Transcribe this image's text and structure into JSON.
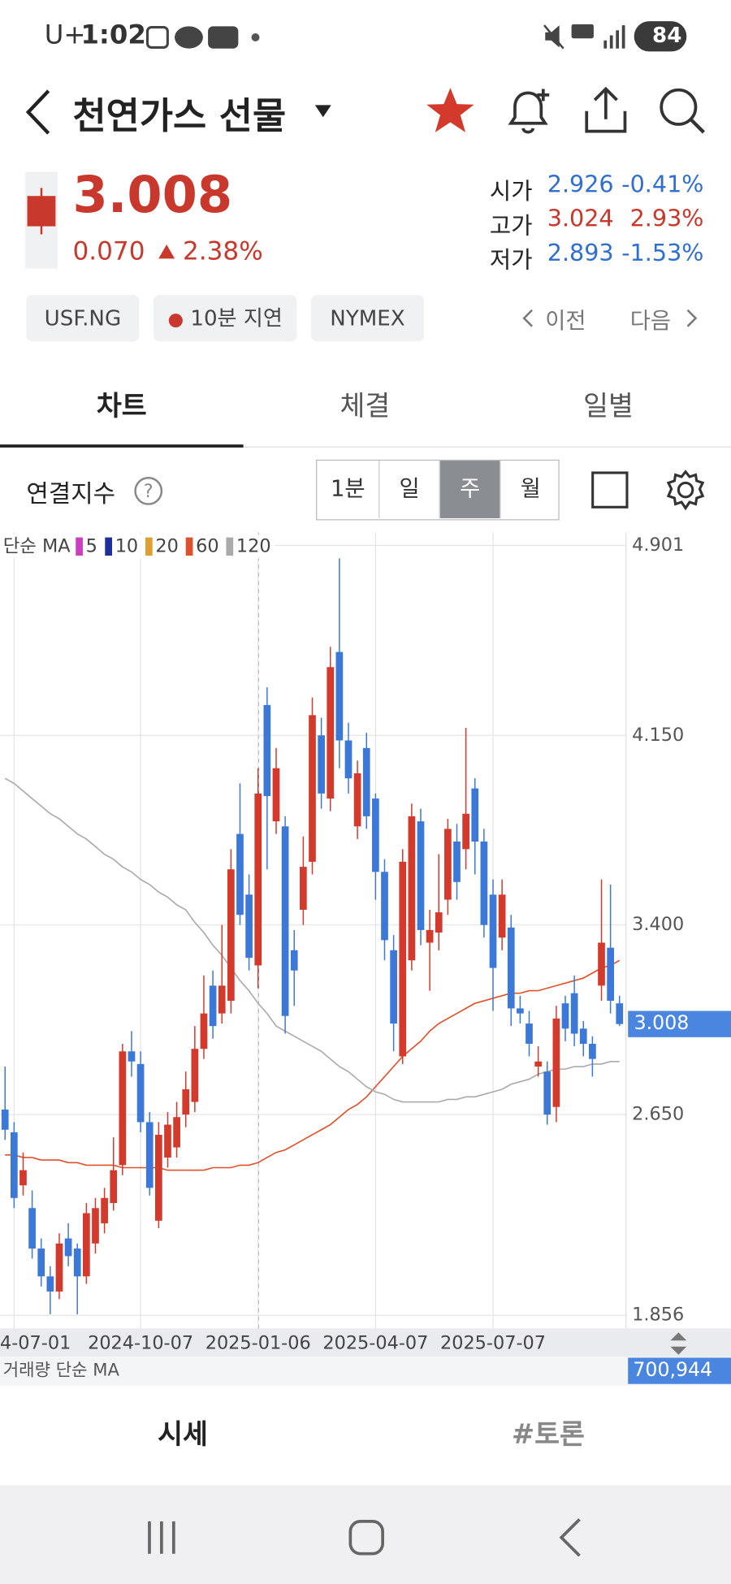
{
  "status_bar": {
    "carrier": "U+",
    "time": "1:02",
    "battery": "84"
  },
  "header": {
    "title": "천연가스 선물"
  },
  "quote": {
    "price": "3.008",
    "change": "0.070",
    "change_pct": "2.38%",
    "stats": [
      {
        "label": "시가",
        "value": "2.926",
        "pct": "-0.41%",
        "color": "#2f6fce"
      },
      {
        "label": "고가",
        "value": "3.024",
        "pct": "2.93%",
        "color": "#c9382c"
      },
      {
        "label": "저가",
        "value": "2.893",
        "pct": "-1.53%",
        "color": "#2f6fce"
      }
    ]
  },
  "chips": [
    "USF.NG",
    "10분 지연",
    "NYMEX"
  ],
  "pager": {
    "prev": "이전",
    "next": "다음"
  },
  "tabs": {
    "items": [
      "차트",
      "체결",
      "일별"
    ],
    "selected": 0
  },
  "controls": {
    "label": "연결지수",
    "periods": [
      "1분",
      "일",
      "주",
      "월"
    ],
    "selected": 2
  },
  "bottom_tabs": [
    "시세",
    "#토론"
  ],
  "chart_data": {
    "type": "candlestick",
    "legend_title": "단순 MA",
    "up_color": "#d33a2c",
    "down_color": "#3c78d8",
    "categories": [
      null,
      "4-07-01",
      null,
      null,
      null,
      null,
      null,
      null,
      null,
      null,
      null,
      null,
      null,
      null,
      null,
      "2024-10-07",
      null,
      null,
      null,
      null,
      null,
      null,
      null,
      null,
      null,
      null,
      null,
      null,
      "2025-01-06",
      null,
      null,
      null,
      null,
      null,
      null,
      null,
      null,
      null,
      null,
      null,
      null,
      "2025-04-07",
      null,
      null,
      null,
      null,
      null,
      null,
      null,
      null,
      null,
      null,
      null,
      null,
      "2025-07-07",
      null,
      null,
      null,
      null,
      null,
      null,
      null,
      null,
      null,
      null,
      null,
      null,
      null,
      null
    ],
    "open": [
      2.67,
      2.58,
      2.37,
      2.28,
      2.12,
      2.01,
      1.95,
      2.16,
      2.12,
      2.01,
      2.14,
      2.22,
      2.3,
      2.45,
      2.9,
      2.85,
      2.62,
      2.23,
      2.48,
      2.52,
      2.65,
      2.7,
      2.91,
      3.16,
      3.05,
      3.1,
      3.76,
      3.52,
      3.24,
      4.27,
      3.81,
      3.79,
      3.3,
      3.46,
      3.65,
      4.15,
      3.9,
      4.48,
      4.13,
      3.79,
      4.1,
      3.9,
      3.61,
      3.3,
      2.88,
      3.26,
      3.81,
      3.33,
      3.37,
      3.5,
      3.73,
      3.7,
      3.94,
      3.73,
      3.52,
      3.35,
      3.39,
      3.07,
      3.01,
      2.84,
      2.82,
      2.68,
      3.09,
      3.13,
      2.99,
      2.93,
      3.16,
      3.31,
      3.09
    ],
    "high": [
      2.84,
      2.62,
      2.5,
      2.35,
      2.16,
      2.05,
      2.18,
      2.22,
      2.14,
      2.3,
      2.32,
      2.36,
      2.56,
      2.93,
      2.98,
      2.9,
      2.66,
      2.62,
      2.66,
      2.7,
      2.82,
      3.0,
      3.2,
      3.22,
      3.4,
      3.7,
      3.96,
      3.6,
      4.02,
      4.34,
      4.1,
      3.83,
      3.38,
      3.75,
      4.3,
      4.22,
      4.5,
      4.85,
      4.2,
      4.05,
      4.16,
      3.92,
      3.66,
      3.36,
      3.7,
      3.88,
      3.86,
      3.46,
      3.68,
      3.82,
      3.8,
      4.18,
      3.98,
      3.78,
      3.58,
      3.58,
      3.44,
      3.12,
      3.06,
      2.92,
      2.86,
      3.08,
      3.12,
      3.2,
      3.02,
      2.96,
      3.58,
      3.56,
      3.12
    ],
    "low": [
      2.55,
      2.28,
      2.33,
      2.08,
      1.97,
      1.86,
      1.92,
      2.05,
      1.86,
      1.98,
      2.1,
      2.18,
      2.27,
      2.41,
      2.8,
      2.58,
      2.33,
      2.2,
      2.44,
      2.48,
      2.6,
      2.66,
      2.87,
      2.95,
      3.01,
      3.05,
      3.4,
      3.22,
      3.15,
      3.62,
      3.76,
      2.97,
      3.08,
      3.4,
      3.6,
      3.86,
      3.85,
      4.02,
      3.92,
      3.74,
      3.78,
      3.5,
      3.26,
      2.9,
      2.85,
      3.22,
      3.32,
      3.14,
      3.3,
      3.44,
      3.5,
      3.62,
      3.6,
      3.35,
      3.06,
      3.3,
      3.0,
      3.01,
      2.88,
      2.8,
      2.61,
      2.62,
      2.94,
      2.92,
      2.88,
      2.8,
      3.1,
      3.05,
      3.0
    ],
    "close": [
      2.59,
      2.32,
      2.43,
      2.12,
      2.01,
      1.95,
      2.14,
      2.09,
      2.01,
      2.26,
      2.28,
      2.32,
      2.43,
      2.9,
      2.86,
      2.62,
      2.36,
      2.57,
      2.61,
      2.64,
      2.75,
      2.91,
      3.05,
      3.0,
      3.16,
      3.62,
      3.44,
      3.27,
      3.92,
      3.91,
      4.02,
      3.04,
      3.22,
      3.63,
      4.23,
      3.92,
      4.42,
      4.13,
      3.98,
      4.0,
      3.83,
      3.61,
      3.34,
      3.01,
      3.65,
      3.83,
      3.38,
      3.38,
      3.45,
      3.78,
      3.57,
      3.84,
      3.73,
      3.4,
      3.23,
      3.52,
      3.07,
      3.05,
      2.93,
      2.86,
      2.65,
      3.03,
      2.99,
      2.97,
      2.93,
      2.87,
      3.33,
      3.1,
      3.008
    ],
    "series": [
      {
        "name": "5",
        "color": "#c93fc0"
      },
      {
        "name": "10",
        "color": "#1f2f9a"
      },
      {
        "name": "20",
        "color": "#e0a030"
      },
      {
        "name": "60",
        "color": "#e0502a",
        "values": [
          2.49,
          2.49,
          2.48,
          2.48,
          2.47,
          2.47,
          2.47,
          2.46,
          2.46,
          2.45,
          2.45,
          2.45,
          2.45,
          2.44,
          2.44,
          2.44,
          2.44,
          2.44,
          2.43,
          2.43,
          2.43,
          2.43,
          2.43,
          2.44,
          2.44,
          2.44,
          2.45,
          2.45,
          2.46,
          2.48,
          2.5,
          2.51,
          2.53,
          2.55,
          2.57,
          2.59,
          2.61,
          2.64,
          2.67,
          2.69,
          2.72,
          2.76,
          2.8,
          2.84,
          2.88,
          2.91,
          2.94,
          2.98,
          3.01,
          3.03,
          3.05,
          3.07,
          3.09,
          3.1,
          3.11,
          3.12,
          3.13,
          3.13,
          3.14,
          3.14,
          3.15,
          3.16,
          3.17,
          3.18,
          3.19,
          3.21,
          3.23,
          3.24,
          3.26
        ]
      },
      {
        "name": "120",
        "color": "#aaaaaa",
        "values": [
          3.98,
          3.96,
          3.93,
          3.9,
          3.87,
          3.84,
          3.82,
          3.79,
          3.76,
          3.74,
          3.71,
          3.68,
          3.66,
          3.63,
          3.61,
          3.58,
          3.56,
          3.53,
          3.51,
          3.48,
          3.46,
          3.41,
          3.37,
          3.32,
          3.28,
          3.23,
          3.18,
          3.14,
          3.09,
          3.05,
          3.0,
          2.98,
          2.96,
          2.94,
          2.92,
          2.9,
          2.87,
          2.84,
          2.82,
          2.79,
          2.76,
          2.74,
          2.73,
          2.71,
          2.7,
          2.7,
          2.7,
          2.7,
          2.7,
          2.71,
          2.71,
          2.72,
          2.72,
          2.73,
          2.74,
          2.75,
          2.77,
          2.78,
          2.79,
          2.81,
          2.82,
          2.83,
          2.83,
          2.84,
          2.84,
          2.85,
          2.85,
          2.86,
          2.86
        ]
      }
    ],
    "ylim": [
      1.856,
      4.901
    ],
    "yticks": [
      4.901,
      {
        "value": 4.15,
        "label": "4.150"
      },
      {
        "value": 3.4,
        "label": "3.400"
      },
      {
        "value": 2.65,
        "label": "2.650"
      },
      1.856
    ],
    "grid": true,
    "last_price": 3.008,
    "last_price_color": "#4a86e0",
    "volume_legend": "거래량 단순 MA",
    "volume_last": {
      "value": 700944,
      "label": "700,944"
    }
  }
}
